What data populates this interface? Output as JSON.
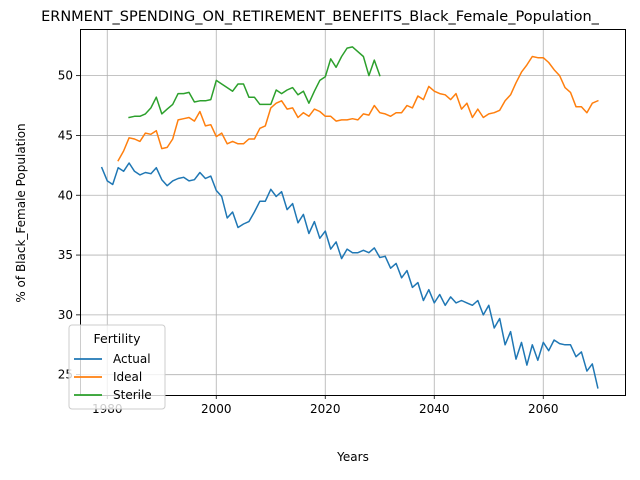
{
  "chart_data": {
    "type": "line",
    "title": "ERNMENT_SPENDING_ON_RETIREMENT_BENEFITS_Black_Female_Population_",
    "xlabel": "Years",
    "ylabel": "% of Black_Female Population",
    "xlim": [
      1975,
      2075
    ],
    "ylim": [
      23.3,
      53.9
    ],
    "xticks": [
      1980,
      2000,
      2020,
      2040,
      2060
    ],
    "yticks": [
      25,
      30,
      35,
      40,
      45,
      50
    ],
    "grid": true,
    "legend": {
      "title": "Fertility",
      "position": "lower-left"
    },
    "series": [
      {
        "name": "Actual",
        "color": "#1f77b4",
        "x": [
          1979,
          1980,
          1981,
          1982,
          1983,
          1984,
          1985,
          1986,
          1987,
          1988,
          1989,
          1990,
          1991,
          1992,
          1993,
          1994,
          1995,
          1996,
          1997,
          1998,
          1999,
          2000,
          2001,
          2002,
          2003,
          2004,
          2005,
          2006,
          2007,
          2008,
          2009,
          2010,
          2011,
          2012,
          2013,
          2014,
          2015,
          2016,
          2017,
          2018,
          2019,
          2020,
          2021,
          2022,
          2023,
          2024,
          2025,
          2026,
          2027,
          2028,
          2029,
          2030,
          2031,
          2032,
          2033,
          2034,
          2035,
          2036,
          2037,
          2038,
          2039,
          2040,
          2041,
          2042,
          2043,
          2044,
          2045,
          2046,
          2047,
          2048,
          2049,
          2050,
          2051,
          2052,
          2053,
          2054,
          2055,
          2056,
          2057,
          2058,
          2059,
          2060,
          2061,
          2062,
          2063,
          2064,
          2065,
          2066,
          2067,
          2068,
          2069,
          2070
        ],
        "values": [
          42.3,
          41.2,
          40.9,
          42.3,
          42.0,
          42.7,
          42.0,
          41.7,
          41.9,
          41.8,
          42.3,
          41.3,
          40.8,
          41.2,
          41.4,
          41.5,
          41.2,
          41.3,
          41.9,
          41.4,
          41.6,
          40.4,
          39.9,
          38.1,
          38.6,
          37.3,
          37.6,
          37.8,
          38.6,
          39.5,
          39.5,
          40.5,
          39.9,
          40.3,
          38.8,
          39.3,
          37.7,
          38.4,
          36.8,
          37.8,
          36.4,
          37.0,
          35.5,
          36.1,
          34.7,
          35.5,
          35.2,
          35.2,
          35.4,
          35.2,
          35.6,
          34.8,
          34.9,
          33.9,
          34.3,
          33.1,
          33.7,
          32.3,
          32.7,
          31.2,
          32.1,
          31.0,
          31.7,
          30.8,
          31.5,
          31.0,
          31.2,
          31.0,
          30.8,
          31.2,
          30.0,
          30.8,
          28.9,
          29.7,
          27.5,
          28.6,
          26.3,
          27.7,
          25.8,
          27.5,
          26.2,
          27.7,
          27.0,
          27.9,
          27.6,
          27.5,
          27.5,
          26.5,
          26.9,
          25.3,
          25.9,
          23.9
        ]
      },
      {
        "name": "Ideal",
        "color": "#ff7f0e",
        "x": [
          1982,
          1983,
          1984,
          1985,
          1986,
          1987,
          1988,
          1989,
          1990,
          1991,
          1992,
          1993,
          1994,
          1995,
          1996,
          1997,
          1998,
          1999,
          2000,
          2001,
          2002,
          2003,
          2004,
          2005,
          2006,
          2007,
          2008,
          2009,
          2010,
          2011,
          2012,
          2013,
          2014,
          2015,
          2016,
          2017,
          2018,
          2019,
          2020,
          2021,
          2022,
          2023,
          2024,
          2025,
          2026,
          2027,
          2028,
          2029,
          2030,
          2031,
          2032,
          2033,
          2034,
          2035,
          2036,
          2037,
          2038,
          2039,
          2040,
          2041,
          2042,
          2043,
          2044,
          2045,
          2046,
          2047,
          2048,
          2049,
          2050,
          2051,
          2052,
          2053,
          2054,
          2055,
          2056,
          2057,
          2058,
          2059,
          2060,
          2061,
          2062,
          2063,
          2064,
          2065,
          2066,
          2067,
          2068,
          2069,
          2070
        ],
        "values": [
          42.9,
          43.7,
          44.8,
          44.7,
          44.5,
          45.2,
          45.1,
          45.4,
          43.9,
          44.0,
          44.7,
          46.3,
          46.4,
          46.5,
          46.2,
          47.0,
          45.8,
          45.9,
          44.9,
          45.2,
          44.3,
          44.5,
          44.3,
          44.3,
          44.7,
          44.7,
          45.6,
          45.8,
          47.3,
          47.7,
          47.9,
          47.2,
          47.3,
          46.5,
          46.9,
          46.6,
          47.2,
          47.0,
          46.6,
          46.6,
          46.2,
          46.3,
          46.3,
          46.4,
          46.3,
          46.8,
          46.7,
          47.5,
          46.9,
          46.8,
          46.6,
          46.9,
          46.9,
          47.5,
          47.3,
          48.3,
          48.0,
          49.1,
          48.7,
          48.5,
          48.4,
          48.0,
          48.5,
          47.2,
          47.7,
          46.5,
          47.2,
          46.5,
          46.8,
          46.9,
          47.1,
          47.9,
          48.4,
          49.4,
          50.3,
          50.9,
          51.6,
          51.5,
          51.5,
          51.1,
          50.5,
          50.0,
          49.0,
          48.6,
          47.4,
          47.4,
          46.9,
          47.7,
          47.9
        ]
      },
      {
        "name": "Sterile",
        "color": "#2ca02c",
        "x": [
          1984,
          1985,
          1986,
          1987,
          1988,
          1989,
          1990,
          1991,
          1992,
          1993,
          1994,
          1995,
          1996,
          1997,
          1998,
          1999,
          2000,
          2001,
          2002,
          2003,
          2004,
          2005,
          2006,
          2007,
          2008,
          2009,
          2010,
          2011,
          2012,
          2013,
          2014,
          2015,
          2016,
          2017,
          2018,
          2019,
          2020,
          2021,
          2022,
          2023,
          2024,
          2025,
          2026,
          2027,
          2028,
          2029,
          2030
        ],
        "values": [
          46.5,
          46.6,
          46.6,
          46.8,
          47.3,
          48.2,
          46.8,
          47.2,
          47.6,
          48.5,
          48.5,
          48.6,
          47.8,
          47.9,
          47.9,
          48.0,
          49.6,
          49.3,
          49.0,
          48.7,
          49.3,
          49.3,
          48.2,
          48.2,
          47.6,
          47.6,
          47.6,
          48.8,
          48.5,
          48.8,
          49.0,
          48.4,
          48.7,
          47.7,
          48.7,
          49.6,
          49.9,
          51.4,
          50.7,
          51.6,
          52.3,
          52.4,
          52.0,
          51.6,
          50.0,
          51.3,
          50.0
        ]
      }
    ]
  }
}
